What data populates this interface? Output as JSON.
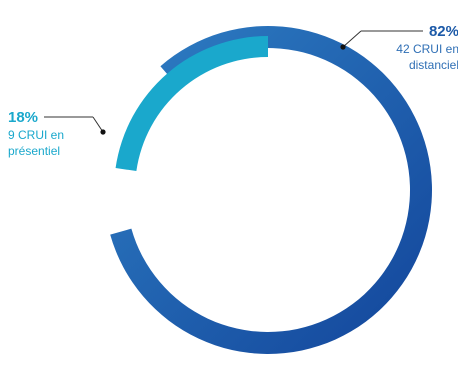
{
  "chart_data": {
    "type": "pie",
    "slices": [
      {
        "percent_label": "82%",
        "value": 82,
        "line1": "42 CRUI en",
        "line2": "distanciel",
        "color": "#1a55a6"
      },
      {
        "percent_label": "18%",
        "value": 18,
        "line1": "9 CRUI en",
        "line2": "présentiel",
        "color": "#1aa8cc"
      }
    ]
  }
}
